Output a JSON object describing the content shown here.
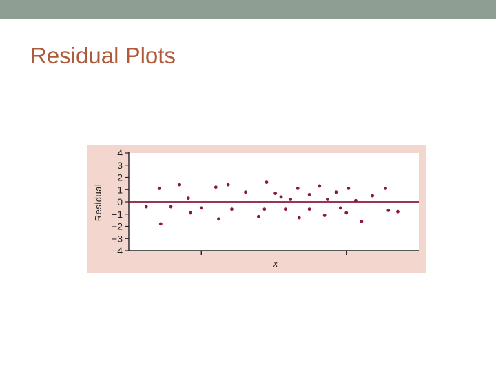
{
  "slide": {
    "title": "Residual Plots"
  },
  "colors": {
    "top_bar": "#8e9e93",
    "title": "#b05a3c",
    "panel": "#f3d6cd",
    "plot_area": "#ffffff",
    "points": "#8b1a3a",
    "zero_line": "#8b1a3a",
    "axis": "#222222"
  },
  "chart_data": {
    "type": "scatter",
    "title": "",
    "xlabel": "x",
    "ylabel": "Residual",
    "ylim": [
      -4,
      4
    ],
    "xlim": [
      0,
      40
    ],
    "yticks": [
      "4",
      "3",
      "2",
      "1",
      "0",
      "−1",
      "−2",
      "−3",
      "−4"
    ],
    "ytick_values": [
      4,
      3,
      2,
      1,
      0,
      -1,
      -2,
      -3,
      -4
    ],
    "xticks_unlabeled": [
      10,
      30
    ],
    "reference_line_y": 0,
    "grid": false,
    "legend": "none",
    "points": [
      {
        "x": 2.4,
        "y": -0.4
      },
      {
        "x": 4.2,
        "y": 1.1
      },
      {
        "x": 4.4,
        "y": -1.8
      },
      {
        "x": 5.8,
        "y": -0.4
      },
      {
        "x": 7.0,
        "y": 1.4
      },
      {
        "x": 8.2,
        "y": 0.3
      },
      {
        "x": 8.5,
        "y": -0.9
      },
      {
        "x": 10.0,
        "y": -0.5
      },
      {
        "x": 12.0,
        "y": 1.2
      },
      {
        "x": 12.4,
        "y": -1.4
      },
      {
        "x": 13.7,
        "y": 1.4
      },
      {
        "x": 14.2,
        "y": -0.6
      },
      {
        "x": 16.1,
        "y": 0.8
      },
      {
        "x": 17.9,
        "y": -1.2
      },
      {
        "x": 18.7,
        "y": -0.6
      },
      {
        "x": 19.0,
        "y": 1.6
      },
      {
        "x": 20.2,
        "y": 0.7
      },
      {
        "x": 21.0,
        "y": 0.4
      },
      {
        "x": 21.6,
        "y": -0.6
      },
      {
        "x": 22.3,
        "y": 0.2
      },
      {
        "x": 23.3,
        "y": 1.1
      },
      {
        "x": 23.5,
        "y": -1.3
      },
      {
        "x": 24.9,
        "y": 0.6
      },
      {
        "x": 24.9,
        "y": -0.6
      },
      {
        "x": 26.3,
        "y": 1.3
      },
      {
        "x": 27.0,
        "y": -1.1
      },
      {
        "x": 27.4,
        "y": 0.2
      },
      {
        "x": 28.6,
        "y": 0.8
      },
      {
        "x": 29.2,
        "y": -0.5
      },
      {
        "x": 30.0,
        "y": -0.9
      },
      {
        "x": 30.3,
        "y": 1.1
      },
      {
        "x": 31.3,
        "y": 0.1
      },
      {
        "x": 32.1,
        "y": -1.6
      },
      {
        "x": 33.6,
        "y": 0.5
      },
      {
        "x": 35.4,
        "y": 1.1
      },
      {
        "x": 35.8,
        "y": -0.7
      },
      {
        "x": 37.1,
        "y": -0.8
      }
    ]
  }
}
